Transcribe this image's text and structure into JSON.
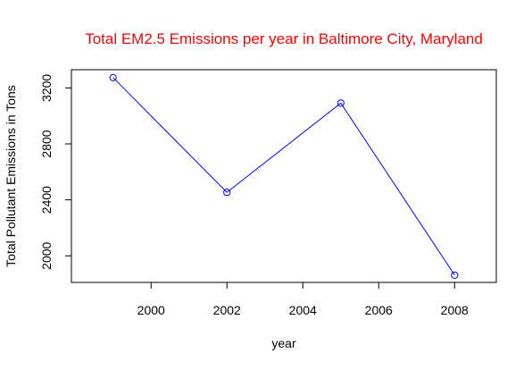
{
  "chart_data": {
    "type": "line",
    "title": "Total EM2.5 Emissions per year in Baltimore City, Maryland",
    "xlabel": "year",
    "ylabel": "Total Pollutant Emissions in Tons",
    "x": [
      1999,
      2002,
      2005,
      2008
    ],
    "series": [
      {
        "values": [
          3274,
          2454,
          3091,
          1862
        ]
      }
    ],
    "xlim": [
      1997.9,
      2009.1
    ],
    "ylim": [
      1810,
      3330
    ],
    "x_ticks": [
      2000,
      2002,
      2004,
      2006,
      2008
    ],
    "y_ticks": [
      2000,
      2400,
      2800,
      3200
    ],
    "grid": false,
    "legend": "none",
    "colors": {
      "title": "#ff0000",
      "line": "#0000ff",
      "axis": "#000000"
    },
    "markers": "open-circle"
  }
}
